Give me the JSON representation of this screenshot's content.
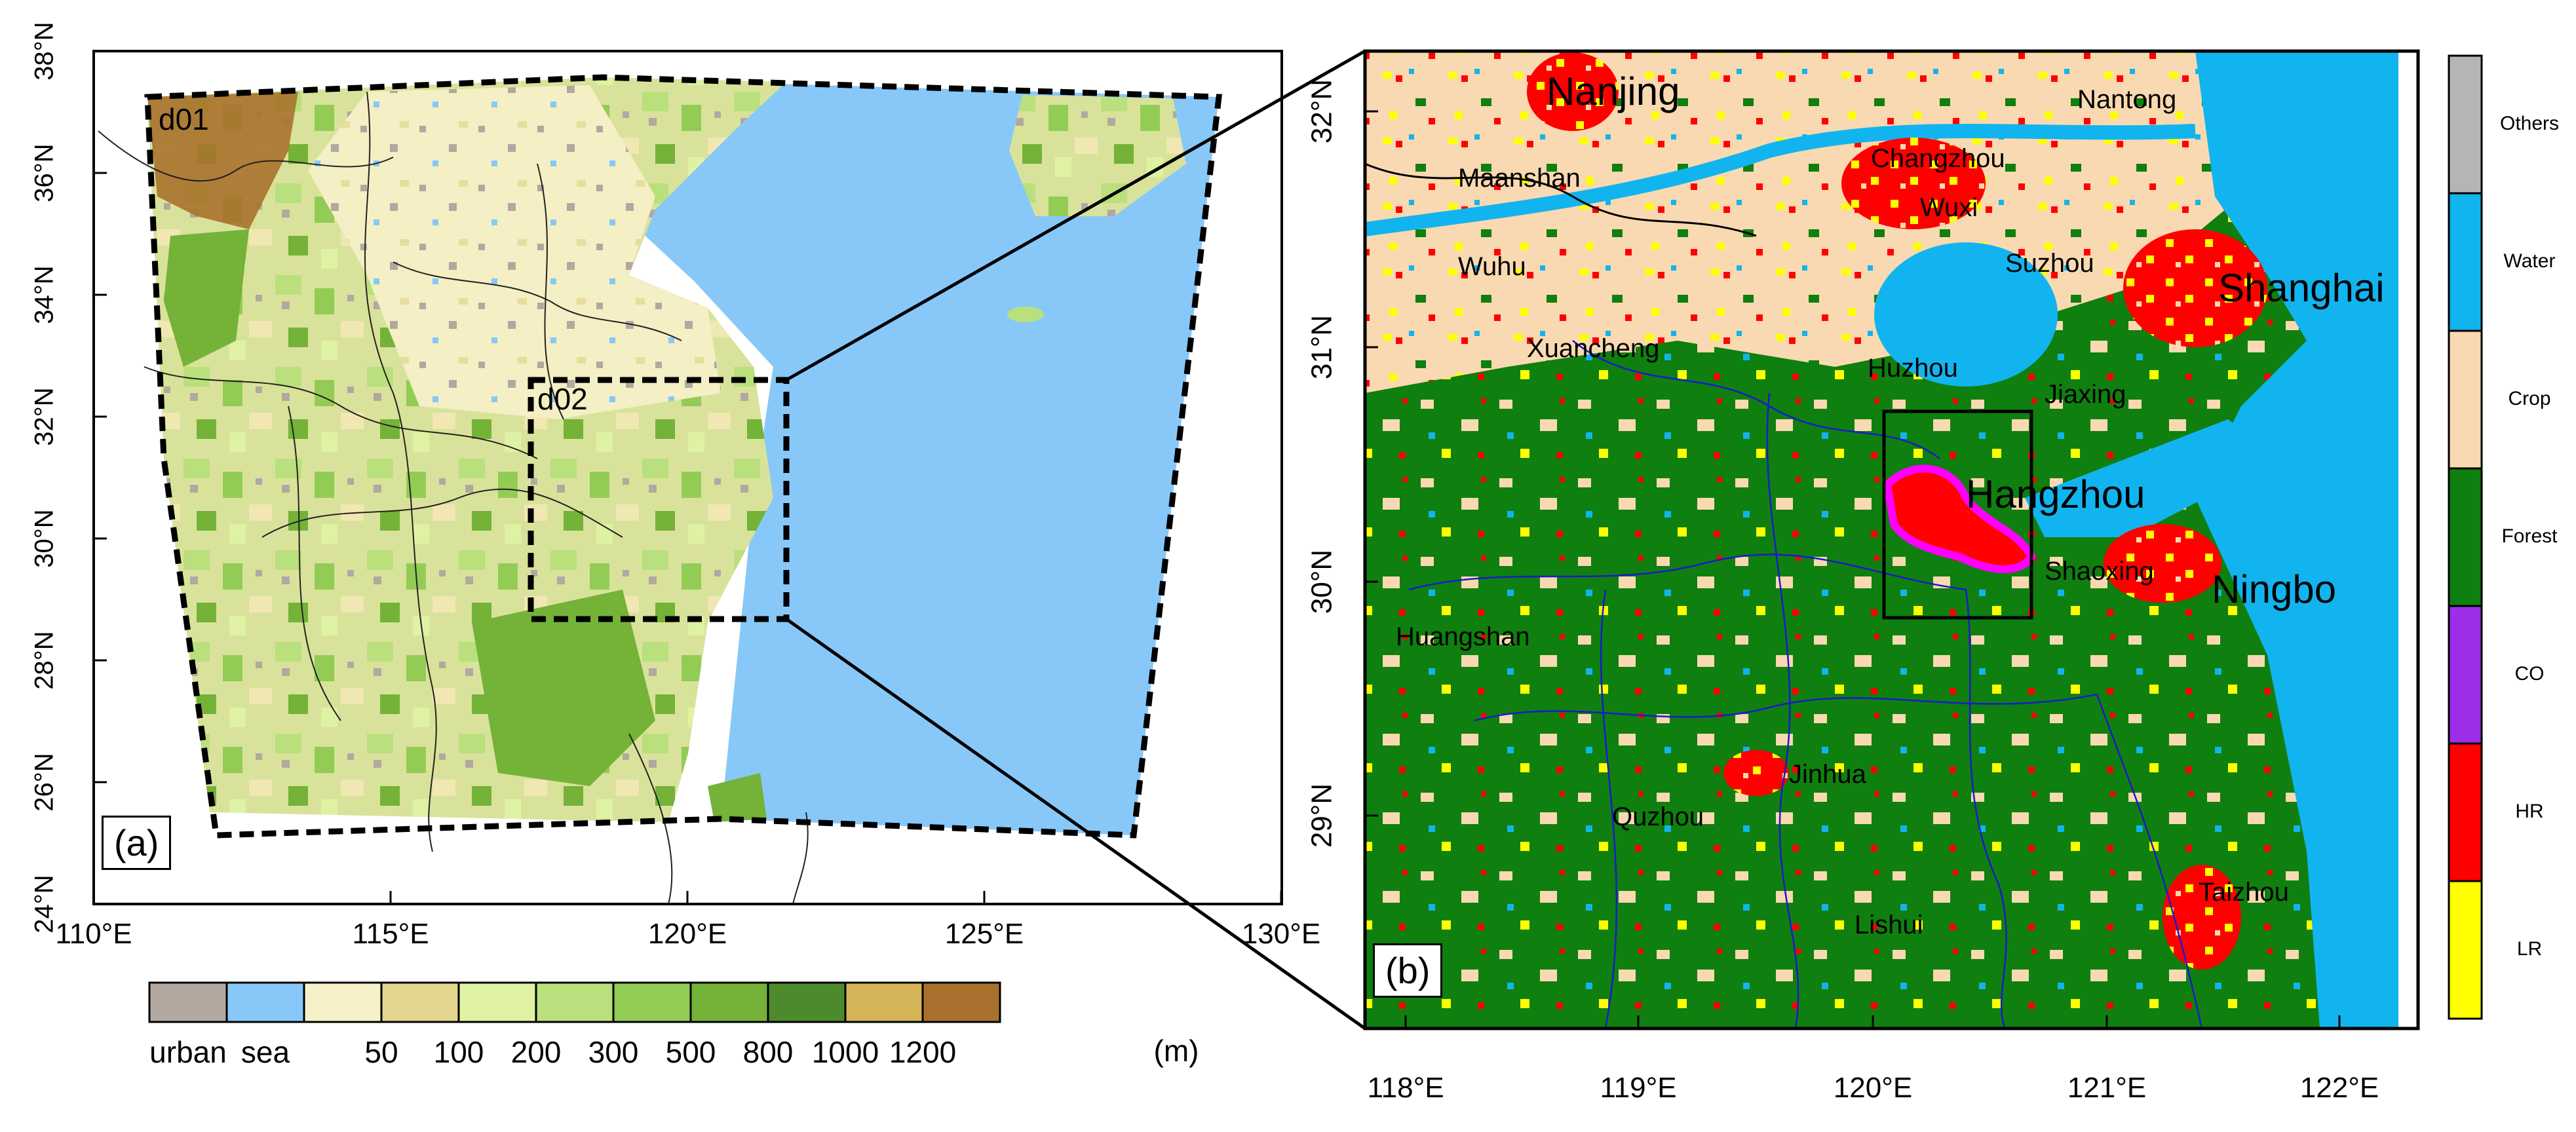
{
  "panel_a": {
    "label": "(a)",
    "domain_d01": "d01",
    "domain_d02": "d02",
    "lat_ticks": [
      "38°N",
      "36°N",
      "34°N",
      "32°N",
      "30°N",
      "28°N",
      "26°N",
      "24°N"
    ],
    "lon_ticks": [
      "110°E",
      "115°E",
      "120°E",
      "125°E",
      "130°E"
    ],
    "legend": {
      "unit": "(m)",
      "items": [
        {
          "label": "urban",
          "color": "#b3a8a0"
        },
        {
          "label": "sea",
          "color": "#88c8f8"
        },
        {
          "label": "50",
          "color": "#f6f1c8"
        },
        {
          "label": "100",
          "color": "#e2d58d"
        },
        {
          "label": "200",
          "color": "#dff2a4"
        },
        {
          "label": "300",
          "color": "#b9e07c"
        },
        {
          "label": "500",
          "color": "#92cc55"
        },
        {
          "label": "800",
          "color": "#74b238"
        },
        {
          "label": "1000",
          "color": "#4d8a2b"
        },
        {
          "label": "1200",
          "color": "#d3b456"
        },
        {
          "label": "",
          "color": "#a8722e"
        }
      ]
    }
  },
  "panel_b": {
    "label": "(b)",
    "lat_ticks": [
      "32°N",
      "31°N",
      "30°N",
      "29°N"
    ],
    "lon_ticks": [
      "118°E",
      "119°E",
      "120°E",
      "121°E",
      "122°E"
    ],
    "cities": [
      {
        "name": "Nanjing",
        "big": true
      },
      {
        "name": "Nantong",
        "big": false
      },
      {
        "name": "Maanshan",
        "big": false
      },
      {
        "name": "Changzhou",
        "big": false
      },
      {
        "name": "Wuxi",
        "big": false
      },
      {
        "name": "Wuhu",
        "big": false
      },
      {
        "name": "Suzhou",
        "big": false
      },
      {
        "name": "Shanghai",
        "big": true
      },
      {
        "name": "Xuancheng",
        "big": false
      },
      {
        "name": "Huzhou",
        "big": false
      },
      {
        "name": "Jiaxing",
        "big": false
      },
      {
        "name": "Hangzhou",
        "big": true
      },
      {
        "name": "Shaoxing",
        "big": false
      },
      {
        "name": "Ningbo",
        "big": true
      },
      {
        "name": "Huangshan",
        "big": false
      },
      {
        "name": "Jinhua",
        "big": false
      },
      {
        "name": "Quzhou",
        "big": false
      },
      {
        "name": "Taizhou",
        "big": false
      },
      {
        "name": "Lishui",
        "big": false
      }
    ],
    "legend": [
      {
        "label": "Others",
        "color": "#b5b5b5"
      },
      {
        "label": "Water",
        "color": "#12b4ef"
      },
      {
        "label": "Crop",
        "color": "#f9d9b1"
      },
      {
        "label": "Forest",
        "color": "#0f7f0f"
      },
      {
        "label": "CO",
        "color": "#9b2ee6"
      },
      {
        "label": "HR",
        "color": "#ff0000"
      },
      {
        "label": "LR",
        "color": "#ffff00"
      }
    ]
  }
}
